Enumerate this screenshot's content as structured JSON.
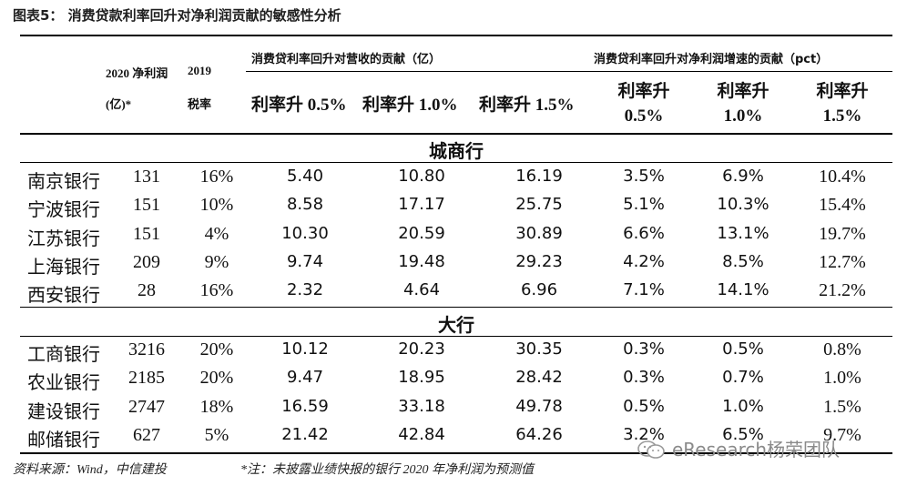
{
  "title": {
    "prefix": "图表5：",
    "text": "消费贷款利率回升对净利润贡献的敏感性分析"
  },
  "header": {
    "profit_label_line1": "2020 净利润",
    "profit_label_unit": "(亿)*",
    "tax_label_year": "2019",
    "tax_label": "税率",
    "revenue_group": "消费贷利率回升对营收的贡献（亿）",
    "profit_growth_group": "消费贷利率回升对净利润增速的贡献（pct）",
    "revenue_cols": [
      "利率升 0.5%",
      "利率升 1.0%",
      "利率升 1.5%"
    ],
    "growth_cols": [
      {
        "line1": "利率升",
        "line2": "0.5%"
      },
      {
        "line1": "利率升",
        "line2": "1.0%"
      },
      {
        "line1": "利率升",
        "line2": "1.5%"
      }
    ]
  },
  "sections": [
    {
      "name": "城商行",
      "rows": [
        {
          "bank": "南京银行",
          "profit": "131",
          "tax": "16%",
          "r05": "5.40",
          "r10": "10.80",
          "r15": "16.19",
          "g05": "3.5%",
          "g10": "6.9%",
          "g15": "10.4%"
        },
        {
          "bank": "宁波银行",
          "profit": "151",
          "tax": "10%",
          "r05": "8.58",
          "r10": "17.17",
          "r15": "25.75",
          "g05": "5.1%",
          "g10": "10.3%",
          "g15": "15.4%"
        },
        {
          "bank": "江苏银行",
          "profit": "151",
          "tax": "4%",
          "r05": "10.30",
          "r10": "20.59",
          "r15": "30.89",
          "g05": "6.6%",
          "g10": "13.1%",
          "g15": "19.7%"
        },
        {
          "bank": "上海银行",
          "profit": "209",
          "tax": "9%",
          "r05": "9.74",
          "r10": "19.48",
          "r15": "29.23",
          "g05": "4.2%",
          "g10": "8.5%",
          "g15": "12.7%"
        },
        {
          "bank": "西安银行",
          "profit": "28",
          "tax": "16%",
          "r05": "2.32",
          "r10": "4.64",
          "r15": "6.96",
          "g05": "7.1%",
          "g10": "14.1%",
          "g15": "21.2%"
        }
      ]
    },
    {
      "name": "大行",
      "rows": [
        {
          "bank": "工商银行",
          "profit": "3216",
          "tax": "20%",
          "r05": "10.12",
          "r10": "20.23",
          "r15": "30.35",
          "g05": "0.3%",
          "g10": "0.5%",
          "g15": "0.8%"
        },
        {
          "bank": "农业银行",
          "profit": "2185",
          "tax": "20%",
          "r05": "9.47",
          "r10": "18.95",
          "r15": "28.42",
          "g05": "0.3%",
          "g10": "0.7%",
          "g15": "1.0%"
        },
        {
          "bank": "建设银行",
          "profit": "2747",
          "tax": "18%",
          "r05": "16.59",
          "r10": "33.18",
          "r15": "49.78",
          "g05": "0.5%",
          "g10": "1.0%",
          "g15": "1.5%"
        },
        {
          "bank": "邮储银行",
          "profit": "627",
          "tax": "5%",
          "r05": "21.42",
          "r10": "42.84",
          "r15": "64.26",
          "g05": "3.2%",
          "g10": "6.5%",
          "g15": "9.7%"
        }
      ]
    }
  ],
  "footer": {
    "source": "资料来源：Wind，中信建投",
    "note": "*注：未披露业绩快报的银行 2020 年净利润为预测值"
  },
  "watermark": {
    "text": "eResearch杨荣团队",
    "icon": "wechat-icon"
  },
  "colors": {
    "text": "#111111",
    "rule": "#000000",
    "watermark": "#8a8a8a"
  }
}
